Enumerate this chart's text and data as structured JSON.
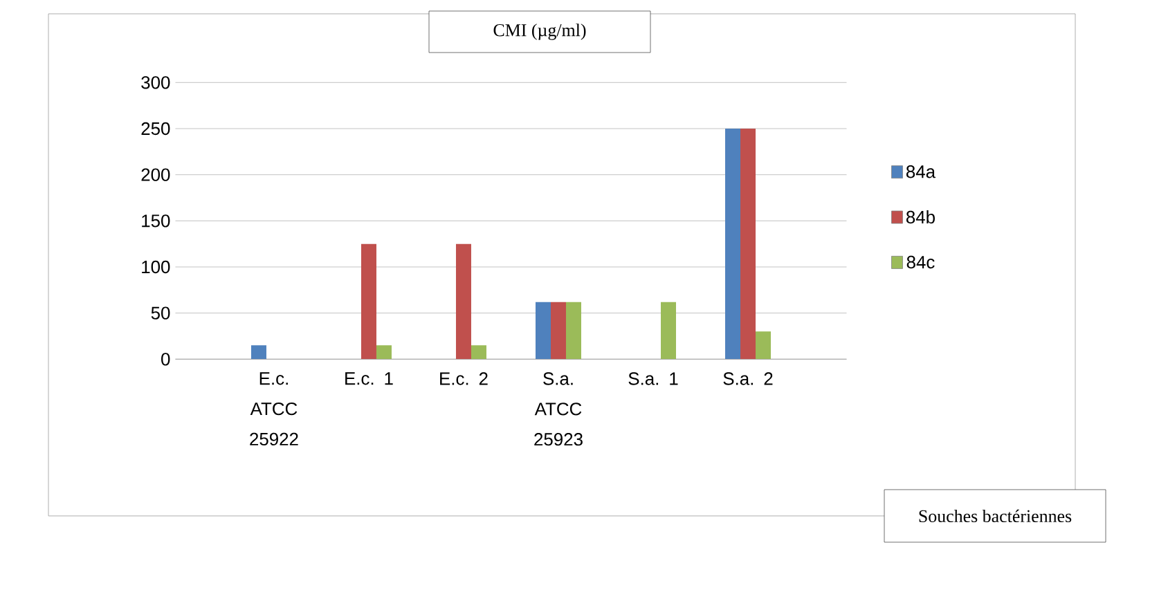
{
  "chart_data": {
    "type": "bar",
    "title": "CMI (µg/ml)",
    "annotations": [
      "Souches bactériennes"
    ],
    "categories": [
      "E.c. ATCC 25922",
      "E.c. 1",
      "E.c. 2",
      "S.a. ATCC 25923",
      "S.a. 1",
      "S.a. 2"
    ],
    "series": [
      {
        "name": "84a",
        "color": "#4f81bd",
        "values": [
          15,
          0,
          0,
          62,
          0,
          250
        ]
      },
      {
        "name": "84b",
        "color": "#c0504d",
        "values": [
          0,
          125,
          125,
          62,
          0,
          250
        ]
      },
      {
        "name": "84c",
        "color": "#9bbb59",
        "values": [
          0,
          15,
          15,
          62,
          62,
          30
        ]
      }
    ],
    "ylim": [
      0,
      300
    ],
    "yticks": [
      0,
      50,
      100,
      150,
      200,
      250,
      300
    ],
    "grid": "y",
    "legend": "right"
  }
}
